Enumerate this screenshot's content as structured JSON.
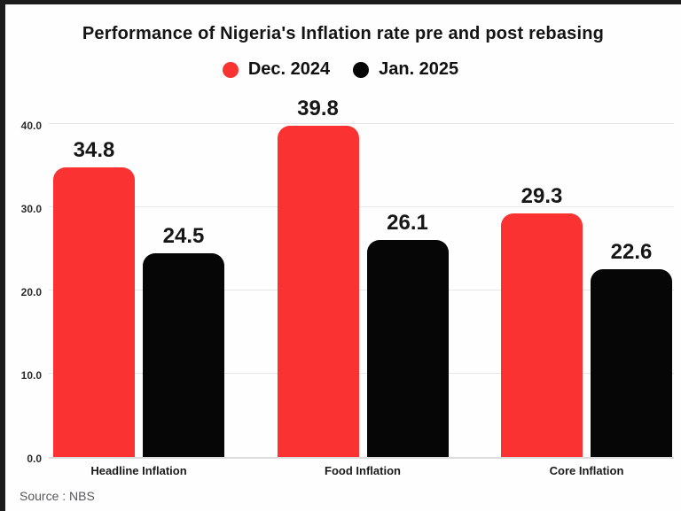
{
  "page": {
    "title": "Performance of Nigeria's Inflation rate pre and post rebasing",
    "source_note": "Source : NBS"
  },
  "colors": {
    "dec_2024_red": "#FA3232",
    "jan_2025_black": "#060606",
    "frame_edge": "#1C1C1C",
    "gridline": "#E7E7E7",
    "baseline": "#DCDCDC",
    "source_text": "#57585A"
  },
  "chart_data": {
    "type": "bar",
    "title": "Performance of Nigeria's Inflation rate pre and post rebasing",
    "categories": [
      "Headline Inflation",
      "Food Inflation",
      "Core Inflation"
    ],
    "series": [
      {
        "name": "Dec. 2024",
        "color": "#FA3232",
        "values": [
          34.8,
          39.8,
          29.3
        ]
      },
      {
        "name": "Jan. 2025",
        "color": "#060606",
        "values": [
          24.5,
          26.1,
          22.6
        ]
      }
    ],
    "value_labels": {
      "Dec. 2024": [
        "34.8",
        "39.8",
        "29.3"
      ],
      "Jan. 2025": [
        "24.5",
        "26.1",
        "22.6"
      ]
    },
    "yticks": [
      0,
      10,
      20,
      30,
      40
    ],
    "ytick_labels": [
      "0.0",
      "10.0",
      "20.0",
      "30.0",
      "40.0"
    ],
    "ylim": [
      0,
      43
    ],
    "xlabel": "",
    "ylabel": "",
    "grid": "horizontal",
    "legend_position": "top-center",
    "source": "Source : NBS"
  }
}
